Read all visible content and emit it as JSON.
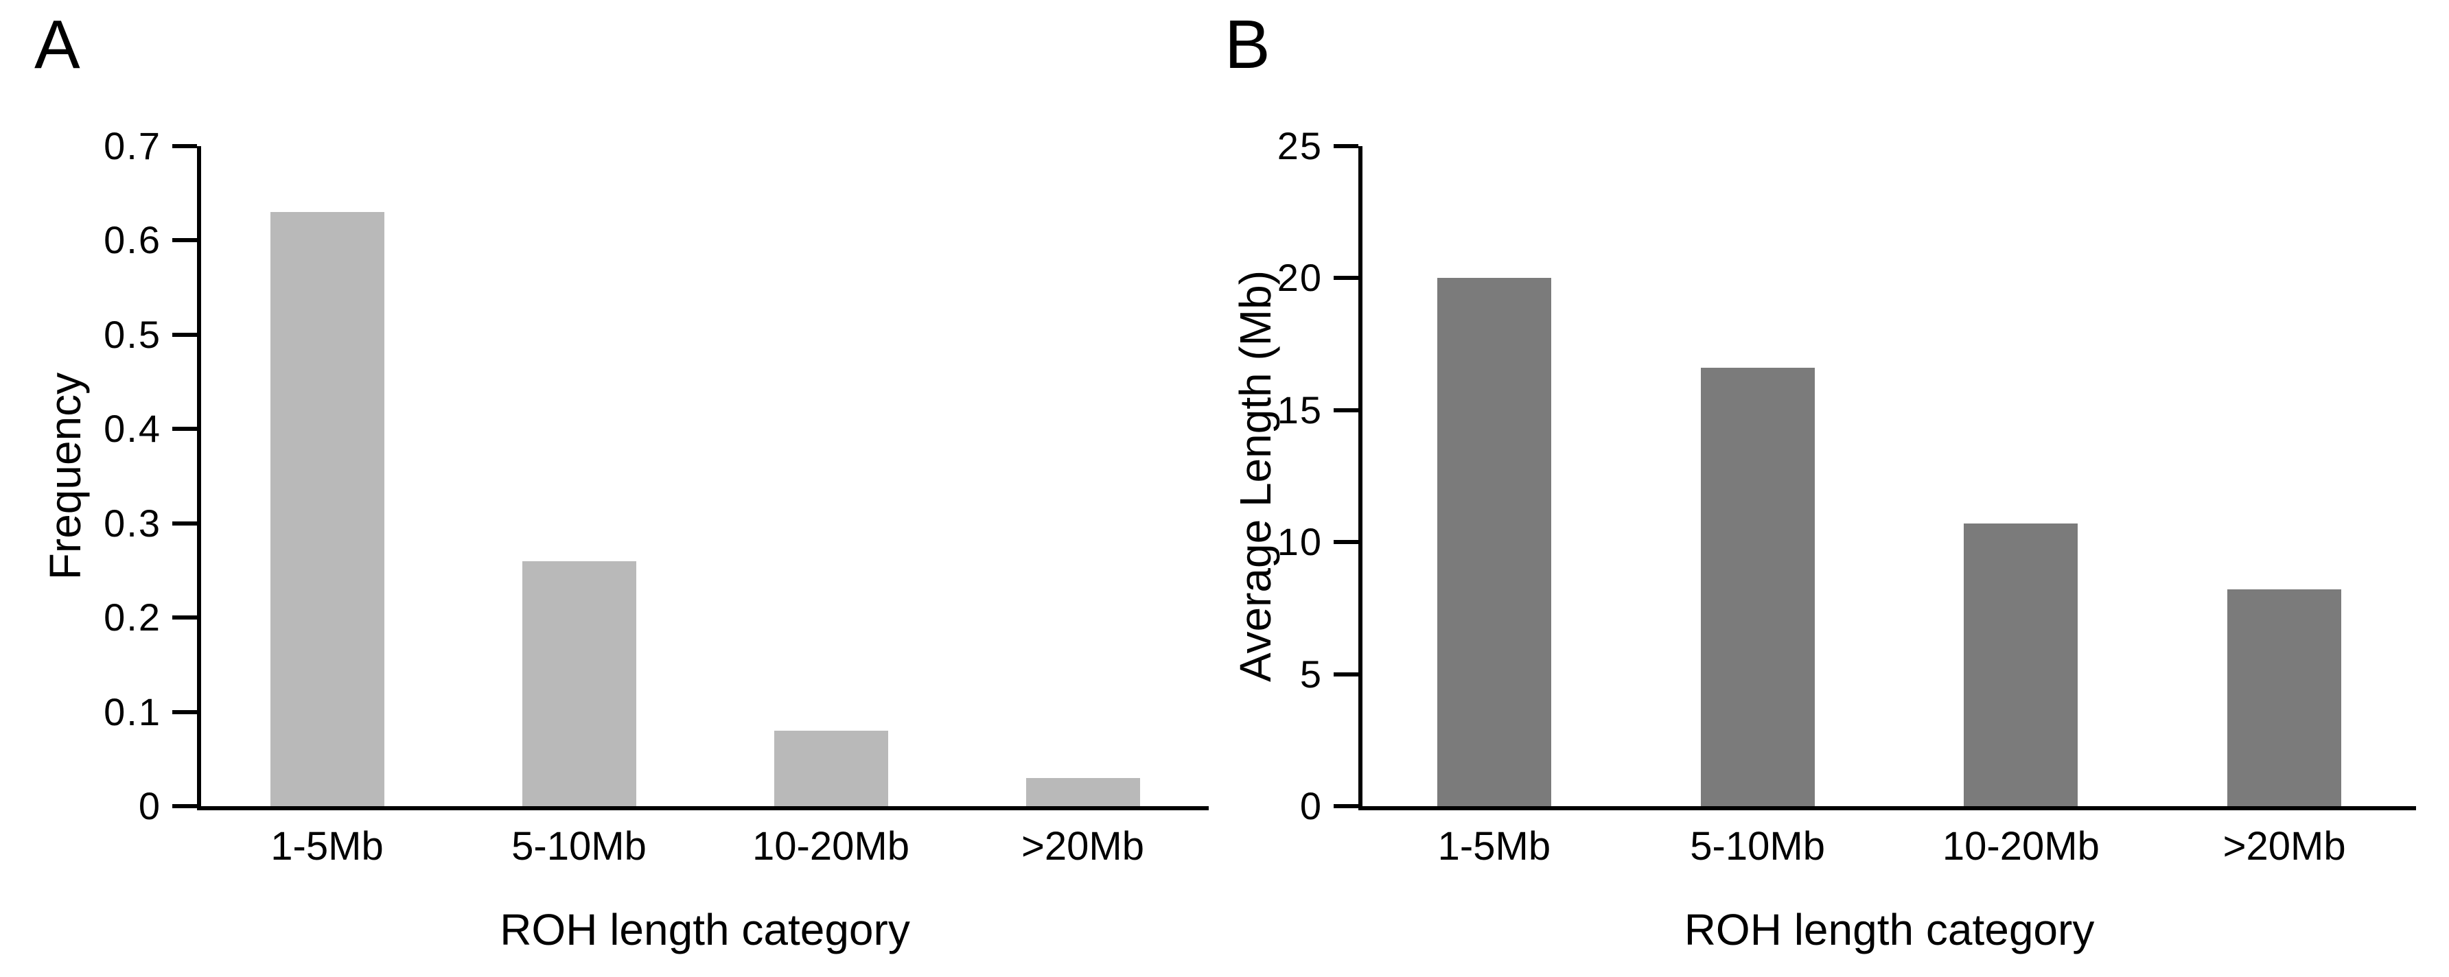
{
  "figure": {
    "background_color": "#ffffff",
    "axis_color": "#000000",
    "text_color": "#000000"
  },
  "chart_data": [
    {
      "type": "bar",
      "panel_label": "A",
      "categories": [
        "1-5Mb",
        "5-10Mb",
        "10-20Mb",
        ">20Mb"
      ],
      "values": [
        0.63,
        0.26,
        0.08,
        0.03
      ],
      "title": "",
      "xlabel": "ROH length category",
      "ylabel": "Frequency",
      "ylim": [
        0,
        0.7
      ],
      "yticks": [
        0,
        0.1,
        0.2,
        0.3,
        0.4,
        0.5,
        0.6,
        0.7
      ],
      "ytick_labels": [
        "0",
        "0.1",
        "0.2",
        "0.3",
        "0.4",
        "0.5",
        "0.6",
        "0.7"
      ],
      "bar_color": "#b9b9b9",
      "grid": false,
      "legend": null
    },
    {
      "type": "bar",
      "panel_label": "B",
      "categories": [
        "1-5Mb",
        "5-10Mb",
        "10-20Mb",
        ">20Mb"
      ],
      "values": [
        20.0,
        16.6,
        10.7,
        8.2
      ],
      "title": "",
      "xlabel": "ROH length category",
      "ylabel": "Average Length (Mb)",
      "ylim": [
        0,
        25
      ],
      "yticks": [
        0,
        5,
        10,
        15,
        20,
        25
      ],
      "ytick_labels": [
        "0",
        "5",
        "10",
        "15",
        "20",
        "25"
      ],
      "bar_color": "#7b7b7b",
      "grid": false,
      "legend": null
    }
  ]
}
